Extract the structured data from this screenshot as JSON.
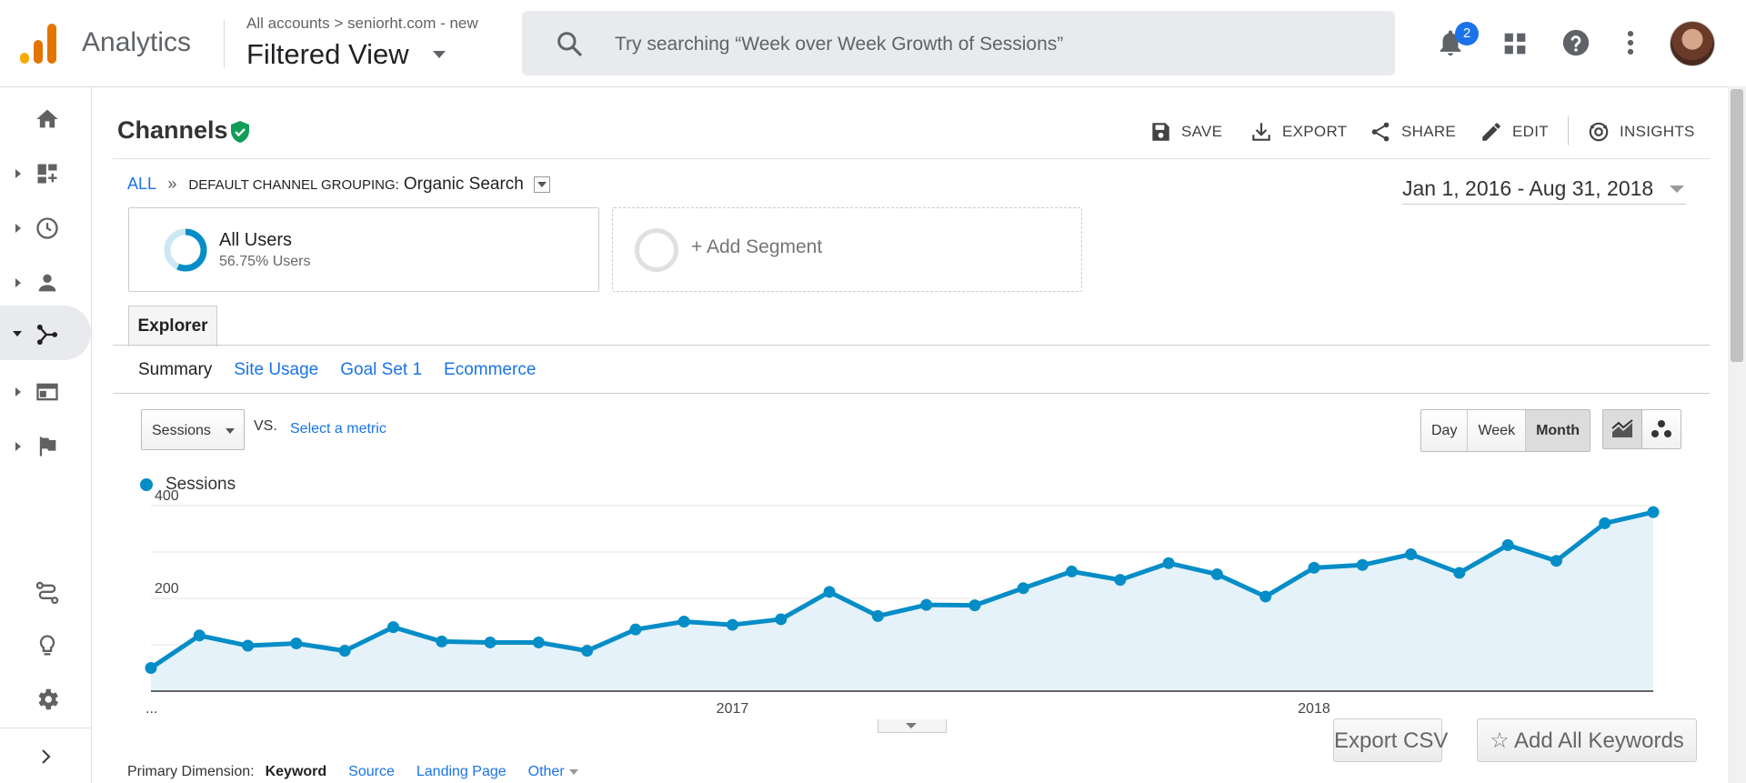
{
  "app": {
    "name": "Analytics",
    "account_path": "All accounts > seniorht.com - new",
    "view": "Filtered View"
  },
  "search": {
    "placeholder": "Try searching “Week over Week Growth of Sessions”"
  },
  "topbar": {
    "notification_count": "2",
    "icons": [
      "notifications-icon",
      "apps-grid-icon",
      "help-icon",
      "more-vert-icon",
      "avatar"
    ]
  },
  "leftnav": {
    "items": [
      {
        "name": "home",
        "icon": "home-icon"
      },
      {
        "name": "customization",
        "icon": "dashboard-add-icon"
      },
      {
        "name": "realtime",
        "icon": "clock-icon"
      },
      {
        "name": "audience",
        "icon": "person-icon"
      },
      {
        "name": "acquisition",
        "icon": "acquisition-icon",
        "active": true
      },
      {
        "name": "behavior",
        "icon": "behavior-icon"
      },
      {
        "name": "conversions",
        "icon": "flag-icon"
      }
    ],
    "bottom": [
      "attribution-icon",
      "discover-icon",
      "admin-gear-icon",
      "expand-chevron-icon"
    ]
  },
  "report": {
    "title": "Channels",
    "actions": {
      "save": "SAVE",
      "export": "EXPORT",
      "share": "SHARE",
      "edit": "EDIT",
      "insights": "INSIGHTS"
    }
  },
  "breadcrumb": {
    "all": "ALL",
    "sep": "»",
    "grouping_label": "DEFAULT CHANNEL GROUPING:",
    "grouping_value": "Organic Search"
  },
  "date_range": "Jan 1, 2016 - Aug 31, 2018",
  "segments": {
    "active": {
      "name": "All Users",
      "detail": "56.75% Users",
      "share": 56.75
    },
    "add_label": "+ Add Segment"
  },
  "tabs": {
    "main": "Explorer",
    "sub": [
      "Summary",
      "Site Usage",
      "Goal Set 1",
      "Ecommerce"
    ]
  },
  "controls": {
    "metric": "Sessions",
    "vs": "VS.",
    "select_metric": "Select a metric",
    "periods": [
      "Day",
      "Week",
      "Month"
    ],
    "selected_period": "Month"
  },
  "chart_data": {
    "type": "area",
    "series": [
      {
        "name": "Sessions",
        "values": [
          50,
          120,
          98,
          103,
          87,
          138,
          107,
          105,
          105,
          87,
          133,
          150,
          143,
          155,
          214,
          162,
          186,
          185,
          222,
          258,
          240,
          276,
          252,
          204,
          266,
          272,
          295,
          255,
          315,
          281,
          362,
          386
        ]
      }
    ],
    "x_start_label": "...",
    "x_tick_labels": [
      "2017",
      "2018"
    ],
    "x_tick_indices": [
      12,
      24
    ],
    "y_ticks": [
      200,
      400
    ],
    "ylim": [
      0,
      400
    ],
    "grid": true,
    "color": "#058dc7",
    "fill": "#e5f2f9"
  },
  "table_actions": {
    "export_csv": "Export CSV",
    "add_keywords": "Add All Keywords"
  },
  "primary_dimension": {
    "label": "Primary Dimension:",
    "selected": "Keyword",
    "options": [
      "Source",
      "Landing Page",
      "Other"
    ]
  }
}
